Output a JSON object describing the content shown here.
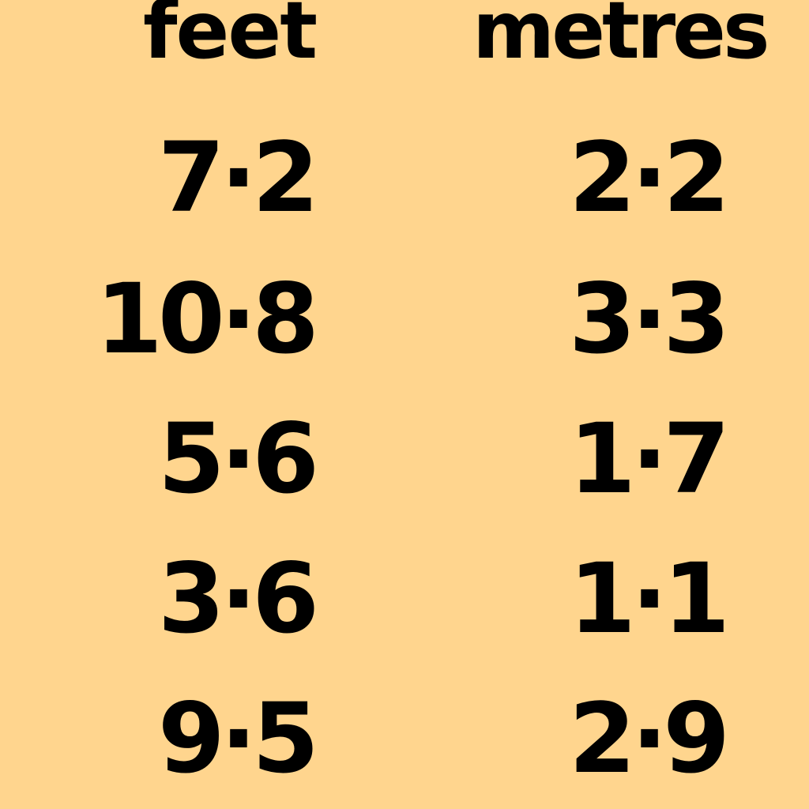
{
  "table": {
    "headers": {
      "feet": "feet",
      "metres": "metres"
    },
    "rows": [
      {
        "feet": "7·2",
        "metres": "2·2"
      },
      {
        "feet": "10·8",
        "metres": "3·3"
      },
      {
        "feet": "5·6",
        "metres": "1·7"
      },
      {
        "feet": "3·6",
        "metres": "1·1"
      },
      {
        "feet": "9·5",
        "metres": "2·9"
      }
    ]
  },
  "colors": {
    "background": "#FFD58E",
    "text": "#000000"
  }
}
